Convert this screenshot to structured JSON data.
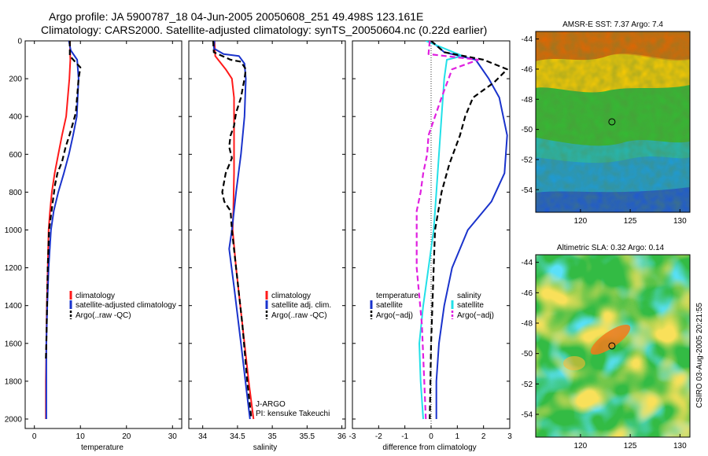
{
  "header": {
    "title_line1": "Argo profile: JA 5900787_18 04-Jun-2005 20050608_251 49.498S 123.161E",
    "title_line2": "Climatology: CARS2000. Satellite-adjusted climatology: synTS_20050604.nc (0.22d earlier)"
  },
  "footer": {
    "credit": "CSIRO 03-Aug-2005 20:21:55"
  },
  "colors": {
    "climatology": "#ff1a1a",
    "satellite": "#1a33cc",
    "argo": "#000000",
    "temp_satellite": "#1a33cc",
    "sal_satellite": "#22e0e8",
    "sal_argo": "#e020e0"
  },
  "chart_data": [
    {
      "id": "temperature",
      "type": "line",
      "xlabel": "temperature",
      "ylabel": "",
      "xlim": [
        -2,
        32
      ],
      "ylim": [
        2050,
        0
      ],
      "xticks": [
        0,
        10,
        20,
        30
      ],
      "yticks": [
        0,
        200,
        400,
        600,
        800,
        1000,
        1200,
        1400,
        1600,
        1800,
        2000
      ],
      "legend": [
        "climatology",
        "satellite-adjusted climatology",
        "Argo(..raw -QC)"
      ],
      "series": [
        {
          "name": "climatology",
          "color_key": "climatology",
          "dash": false,
          "x": [
            7.7,
            7.8,
            7.6,
            6.9,
            6.0,
            5.2,
            4.4,
            3.8,
            3.4,
            3.1,
            2.9,
            2.7,
            2.6,
            2.5,
            2.5
          ],
          "y": [
            0,
            100,
            200,
            400,
            500,
            600,
            700,
            800,
            900,
            1000,
            1200,
            1400,
            1600,
            1800,
            2000
          ]
        },
        {
          "name": "satellite-adjusted climatology",
          "color_key": "satellite",
          "dash": false,
          "x": [
            7.5,
            7.9,
            9.3,
            9.6,
            9.2,
            8.4,
            7.5,
            6.4,
            5.2,
            4.2,
            3.6,
            3.1,
            2.8,
            2.6,
            2.6
          ],
          "y": [
            0,
            50,
            100,
            200,
            400,
            500,
            600,
            700,
            800,
            900,
            1000,
            1200,
            1400,
            1600,
            2000
          ]
        },
        {
          "name": "Argo(..raw -QC)",
          "color_key": "argo",
          "dash": true,
          "x": [
            7.7,
            7.7,
            9.2,
            10.0,
            9.6,
            9.0,
            8.2,
            7.6,
            6.8,
            6.0,
            5.0,
            4.5,
            4.0,
            3.2,
            2.9,
            2.6,
            2.5
          ],
          "y": [
            0,
            80,
            120,
            140,
            200,
            380,
            450,
            500,
            560,
            640,
            700,
            760,
            850,
            1000,
            1200,
            1600,
            1680
          ]
        }
      ]
    },
    {
      "id": "salinity",
      "type": "line",
      "xlabel": "salinity",
      "ylabel": "",
      "xlim": [
        33.8,
        36.05
      ],
      "ylim": [
        2050,
        0
      ],
      "xticks": [
        34,
        34.5,
        35,
        35.5,
        36
      ],
      "yticks": [
        0,
        200,
        400,
        600,
        800,
        1000,
        1200,
        1400,
        1600,
        1800,
        2000
      ],
      "legend": [
        "climatology",
        "satellite adj. clim.",
        "Argo(..raw -QC)"
      ],
      "annotation": [
        "J-ARGO",
        "PI: kensuke Takeuchi"
      ],
      "series": [
        {
          "name": "climatology",
          "color_key": "climatology",
          "dash": false,
          "x": [
            34.17,
            34.18,
            34.33,
            34.42,
            34.45,
            34.45,
            34.45,
            34.44,
            34.43,
            34.48,
            34.57,
            34.66,
            34.73
          ],
          "y": [
            0,
            80,
            150,
            200,
            300,
            500,
            700,
            900,
            1000,
            1200,
            1500,
            1800,
            2000
          ]
        },
        {
          "name": "satellite adj. clim.",
          "color_key": "satellite",
          "dash": false,
          "x": [
            34.17,
            34.16,
            34.3,
            34.52,
            34.6,
            34.62,
            34.6,
            34.55,
            34.48,
            34.42,
            34.38,
            34.45,
            34.55,
            34.63,
            34.68
          ],
          "y": [
            0,
            40,
            70,
            80,
            120,
            200,
            400,
            600,
            800,
            1000,
            1100,
            1300,
            1600,
            1850,
            2000
          ]
        },
        {
          "name": "Argo(..raw -QC)",
          "color_key": "argo",
          "dash": true,
          "x": [
            34.15,
            34.16,
            34.4,
            34.55,
            34.62,
            34.6,
            34.55,
            34.48,
            34.45,
            34.4,
            34.38,
            34.42,
            34.33,
            34.28,
            34.31,
            34.4,
            34.42,
            34.48,
            34.57,
            34.64,
            34.7
          ],
          "y": [
            0,
            60,
            100,
            110,
            150,
            200,
            300,
            380,
            450,
            500,
            560,
            620,
            700,
            800,
            850,
            900,
            1000,
            1200,
            1500,
            1800,
            2000
          ]
        }
      ]
    },
    {
      "id": "difference",
      "type": "line",
      "xlabel": "difference from climatology",
      "ylabel": "",
      "xlim": [
        -3,
        3
      ],
      "ylim": [
        2050,
        0
      ],
      "xticks": [
        -3,
        -2,
        -1,
        0,
        1,
        2,
        3
      ],
      "yticks": [
        0,
        200,
        400,
        600,
        800,
        1000,
        1200,
        1400,
        1600,
        1800,
        2000
      ],
      "legend_left": {
        "header": "temperature",
        "entries": [
          "satellite",
          "Argo(−adj)"
        ]
      },
      "legend_right": {
        "header": "salinity",
        "entries": [
          "satellite",
          "Argo(−adj)"
        ]
      },
      "series": [
        {
          "name": "temperature satellite",
          "color_key": "temp_satellite",
          "dash": false,
          "x": [
            0.0,
            0.5,
            1.7,
            2.2,
            2.6,
            2.9,
            2.8,
            2.3,
            1.4,
            0.8,
            0.5,
            0.3,
            0.2,
            0.2
          ],
          "y": [
            0,
            60,
            100,
            200,
            300,
            500,
            700,
            850,
            1000,
            1200,
            1400,
            1600,
            1800,
            2000
          ]
        },
        {
          "name": "salinity satellite",
          "color_key": "sal_satellite",
          "dash": false,
          "x": [
            -0.2,
            1.2,
            0.6,
            0.5,
            0.4,
            0.3,
            0.2,
            0.1,
            -0.1,
            -0.3,
            -0.45,
            -0.4,
            -0.3
          ],
          "y": [
            0,
            80,
            100,
            200,
            400,
            600,
            800,
            1000,
            1200,
            1400,
            1600,
            1800,
            2000
          ]
        },
        {
          "name": "temperature Argo(-adj)",
          "color_key": "argo",
          "dash": true,
          "x": [
            0.0,
            0.5,
            2.0,
            2.9,
            2.4,
            1.6,
            1.3,
            1.1,
            0.7,
            0.4,
            0.15,
            0.1,
            0.0,
            -0.05
          ],
          "y": [
            0,
            60,
            100,
            150,
            220,
            300,
            400,
            500,
            650,
            800,
            1000,
            1200,
            1600,
            2000
          ]
        },
        {
          "name": "salinity Argo(-adj)",
          "color_key": "sal_argo",
          "dash": true,
          "x": [
            -0.05,
            -0.1,
            1.8,
            0.8,
            0.4,
            -0.1,
            -0.15,
            -0.3,
            -0.4,
            -0.55,
            -0.55,
            -0.35,
            -0.2
          ],
          "y": [
            0,
            70,
            100,
            150,
            300,
            500,
            600,
            700,
            800,
            900,
            1200,
            1500,
            2000
          ]
        }
      ]
    },
    {
      "id": "sst_map",
      "type": "heatmap",
      "title": "AMSR-E SST: 7.37 Argo: 7.4",
      "xlim": [
        115.5,
        131
      ],
      "ylim": [
        -55.5,
        -43.5
      ],
      "xticks": [
        120,
        125,
        130
      ],
      "yticks": [
        -44,
        -46,
        -48,
        -50,
        -52,
        -54
      ],
      "marker": {
        "lon": 123.161,
        "lat": -49.498
      },
      "color_scale": "jet",
      "description_values": {
        "north_value": 0.9,
        "mid_value": 0.55,
        "south_value": 0.2
      }
    },
    {
      "id": "sla_map",
      "type": "heatmap",
      "title": "Altimetric SLA: 0.32 Argo: 0.14",
      "xlim": [
        115.5,
        131
      ],
      "ylim": [
        -55.5,
        -43.5
      ],
      "xticks": [
        120,
        125,
        130
      ],
      "yticks": [
        -44,
        -46,
        -48,
        -50,
        -52,
        -54
      ],
      "marker": {
        "lon": 123.161,
        "lat": -49.498
      },
      "color_scale": "jet"
    }
  ]
}
